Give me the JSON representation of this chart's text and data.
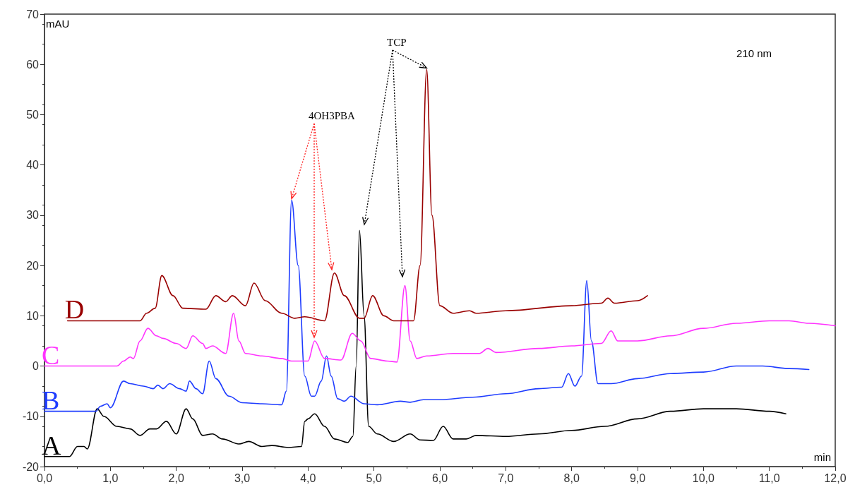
{
  "chart_data": {
    "type": "line",
    "ylabel": "mAU",
    "xlabel": "min",
    "annotations": [
      {
        "text": "4OH3PBA",
        "x": 3.75,
        "y": 33
      },
      {
        "text": "TCP",
        "x": 5.8,
        "y": 59
      },
      "210 nm"
    ],
    "xlim": [
      0,
      12
    ],
    "ylim": [
      -20,
      70
    ],
    "xticks": [
      {
        "value": 0,
        "label": "0,0"
      },
      {
        "value": 1,
        "label": "1,0"
      },
      {
        "value": 2,
        "label": "2,0"
      },
      {
        "value": 3,
        "label": "3,0"
      },
      {
        "value": 4,
        "label": "4,0"
      },
      {
        "value": 5,
        "label": "5,0"
      },
      {
        "value": 6,
        "label": "6,0"
      },
      {
        "value": 7,
        "label": "7,0"
      },
      {
        "value": 8,
        "label": "8,0"
      },
      {
        "value": 9,
        "label": "9,0"
      },
      {
        "value": 10,
        "label": "10,0"
      },
      {
        "value": 11,
        "label": "11,0"
      },
      {
        "value": 12,
        "label": "12,0"
      }
    ],
    "yticks": [
      -20,
      -10,
      0,
      10,
      20,
      30,
      40,
      50,
      60,
      70
    ],
    "grid": false,
    "legend": false,
    "marker": "none",
    "line_style": "solid",
    "series": [
      {
        "name": "A",
        "color": "#000000",
        "x": [
          0,
          0.38,
          0.5,
          0.6,
          0.65,
          0.8,
          0.9,
          1.1,
          1.3,
          1.45,
          1.6,
          1.7,
          1.85,
          2.0,
          2.15,
          2.25,
          2.4,
          2.55,
          2.7,
          2.95,
          3.1,
          3.3,
          3.45,
          3.7,
          3.9,
          3.95,
          4.0,
          4.1,
          4.25,
          4.4,
          4.6,
          4.68,
          4.73,
          4.78,
          4.85,
          4.92,
          5.05,
          5.3,
          5.55,
          5.7,
          5.9,
          6.05,
          6.2,
          6.4,
          6.55,
          7.0,
          7.5,
          8.0,
          8.5,
          9.0,
          9.5,
          10.0,
          10.5,
          11.0,
          11.25
        ],
        "values": [
          -18,
          -18,
          -16,
          -16,
          -16.5,
          -8.5,
          -10,
          -12,
          -12.5,
          -13.8,
          -12.5,
          -12.5,
          -11,
          -13.5,
          -8.5,
          -10.5,
          -13.8,
          -13.5,
          -14.5,
          -15.5,
          -15,
          -16,
          -15.8,
          -16.2,
          -16,
          -11,
          -10.5,
          -9.5,
          -12,
          -14.5,
          -15.2,
          -14,
          0,
          27,
          10,
          -12,
          -13.5,
          -15,
          -13.5,
          -14.7,
          -14.8,
          -12,
          -14.5,
          -14.5,
          -13.8,
          -14,
          -13.5,
          -12.8,
          -12,
          -10.5,
          -9,
          -8.5,
          -8.5,
          -9,
          -9.5
        ]
      },
      {
        "name": "B",
        "color": "#1e3cff",
        "x": [
          0,
          0.78,
          0.85,
          0.95,
          1.0,
          1.2,
          1.3,
          1.5,
          1.65,
          1.72,
          1.8,
          1.9,
          2.05,
          2.15,
          2.2,
          2.3,
          2.4,
          2.5,
          2.6,
          2.8,
          3.0,
          3.3,
          3.6,
          3.67,
          3.75,
          3.85,
          3.95,
          4.05,
          4.1,
          4.2,
          4.28,
          4.35,
          4.45,
          4.55,
          4.65,
          4.85,
          5.05,
          5.4,
          5.55,
          5.75,
          6.0,
          6.5,
          7.0,
          7.5,
          7.85,
          7.95,
          8.05,
          8.15,
          8.23,
          8.3,
          8.4,
          8.6,
          9.0,
          9.5,
          10.0,
          10.5,
          10.9,
          11.3,
          11.6
        ],
        "values": [
          -9,
          -9,
          -8,
          -7.5,
          -8.3,
          -3,
          -3.5,
          -4,
          -4.5,
          -3.8,
          -4.5,
          -3.5,
          -4.5,
          -5,
          -3,
          -4.5,
          -5.5,
          1,
          -2.5,
          -6,
          -7.3,
          -7.5,
          -7.7,
          -5,
          33,
          20,
          -2,
          -6,
          -6,
          -3,
          2,
          -2,
          -6.5,
          -7,
          -6,
          -7.5,
          -7.7,
          -7,
          -7.2,
          -6.7,
          -6.7,
          -6.2,
          -5.5,
          -4.5,
          -4.2,
          -1.5,
          -4,
          -2,
          17,
          5,
          -3.5,
          -3.5,
          -2.5,
          -1.5,
          -1.2,
          0,
          0,
          -0.5,
          -0.7
        ]
      },
      {
        "name": "C",
        "color": "#ff33ff",
        "x": [
          0,
          1.1,
          1.2,
          1.3,
          1.35,
          1.45,
          1.57,
          1.7,
          1.8,
          2.0,
          2.15,
          2.25,
          2.4,
          2.45,
          2.55,
          2.75,
          2.87,
          2.95,
          3.05,
          3.3,
          3.6,
          3.75,
          4.0,
          4.1,
          4.25,
          4.5,
          4.67,
          4.8,
          4.95,
          5.2,
          5.35,
          5.47,
          5.55,
          5.65,
          5.8,
          6.2,
          6.6,
          6.73,
          6.85,
          7.5,
          8.0,
          8.45,
          8.6,
          8.7,
          9.0,
          9.5,
          10.0,
          10.5,
          11.0,
          11.3,
          11.6,
          12.0
        ],
        "values": [
          0,
          0,
          1,
          1.8,
          1.5,
          5,
          7.5,
          6,
          5.5,
          4.5,
          3.5,
          6,
          4.5,
          3.5,
          4,
          2.5,
          10.5,
          5,
          2.5,
          2,
          1.5,
          1,
          1,
          5,
          1.5,
          1.2,
          6.5,
          5,
          1.5,
          1,
          0.8,
          16,
          5,
          1.5,
          2,
          2.5,
          2.5,
          3.5,
          2.7,
          3.5,
          4,
          4.5,
          7,
          5,
          5,
          6,
          7.5,
          8.5,
          9,
          9,
          8.5,
          8
        ]
      },
      {
        "name": "D",
        "color": "#990000",
        "x": [
          0.35,
          1.45,
          1.55,
          1.68,
          1.78,
          1.95,
          2.1,
          2.45,
          2.6,
          2.75,
          2.85,
          3.05,
          3.18,
          3.35,
          3.6,
          3.8,
          3.95,
          4.25,
          4.4,
          4.55,
          4.78,
          4.85,
          4.98,
          5.15,
          5.3,
          5.6,
          5.7,
          5.8,
          5.88,
          6.0,
          6.2,
          6.45,
          6.55,
          7.0,
          8.0,
          8.45,
          8.55,
          8.65,
          9.0,
          9.15
        ],
        "values": [
          9,
          9,
          10.5,
          11.5,
          18,
          14,
          11.5,
          11.3,
          14,
          12.8,
          14,
          12,
          16.5,
          13,
          10.5,
          9.5,
          9.8,
          9,
          18.5,
          14,
          9.5,
          9.5,
          14,
          10,
          9,
          9,
          20,
          59,
          30,
          12,
          10.5,
          11,
          10.5,
          11,
          12,
          12.5,
          13.5,
          12.5,
          13,
          14
        ]
      }
    ]
  }
}
